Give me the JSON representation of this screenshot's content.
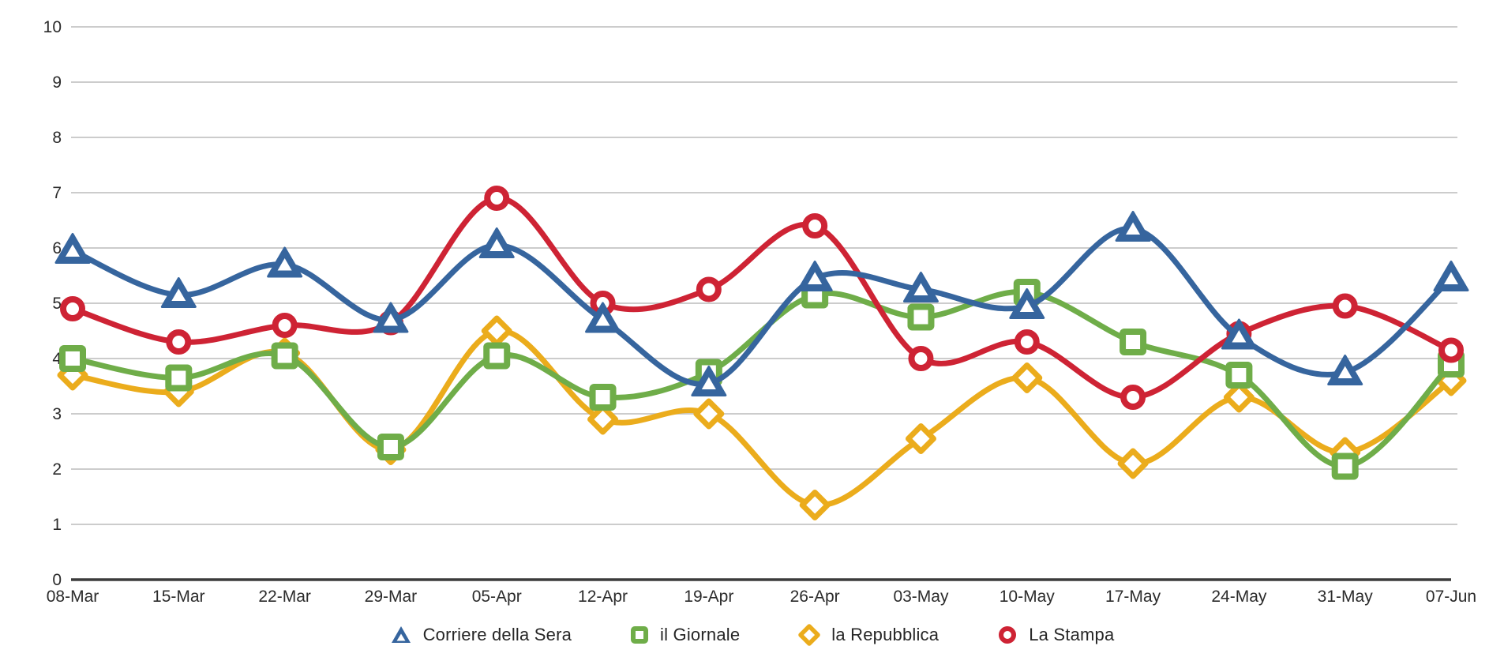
{
  "chart_data": {
    "type": "line",
    "title": "",
    "xlabel": "",
    "ylabel": "",
    "ylim": [
      0,
      10
    ],
    "y_ticks": [
      0,
      1,
      2,
      3,
      4,
      5,
      6,
      7,
      8,
      9,
      10
    ],
    "grid": "horizontal",
    "legend_position": "bottom",
    "categories": [
      "08-Mar",
      "15-Mar",
      "22-Mar",
      "29-Mar",
      "05-Apr",
      "12-Apr",
      "19-Apr",
      "26-Apr",
      "03-May",
      "10-May",
      "17-May",
      "24-May",
      "31-May",
      "07-Jun"
    ],
    "series": [
      {
        "name": "Corriere della Sera",
        "marker": "triangle",
        "color": "#36659E",
        "values": [
          5.95,
          5.15,
          5.7,
          4.7,
          6.05,
          4.7,
          3.55,
          5.45,
          5.25,
          4.95,
          6.35,
          4.4,
          3.75,
          5.45
        ]
      },
      {
        "name": "il Giornale",
        "marker": "square",
        "color": "#6FAD49",
        "values": [
          4.0,
          3.65,
          4.05,
          2.4,
          4.05,
          3.3,
          3.75,
          5.15,
          4.75,
          5.2,
          4.3,
          3.7,
          2.05,
          3.9
        ]
      },
      {
        "name": "la Repubblica",
        "marker": "diamond",
        "color": "#EBAC1C",
        "values": [
          3.7,
          3.4,
          4.1,
          2.35,
          4.5,
          2.9,
          3.0,
          1.35,
          2.55,
          3.65,
          2.1,
          3.3,
          2.3,
          3.6
        ]
      },
      {
        "name": "La Stampa",
        "marker": "circle",
        "color": "#CE2334",
        "values": [
          4.9,
          4.3,
          4.6,
          4.65,
          6.9,
          5.0,
          5.25,
          6.4,
          4.0,
          4.3,
          3.3,
          4.45,
          4.95,
          4.15
        ]
      }
    ],
    "colors": {
      "gridline": "#C5C5C5",
      "axis_line": "#3C3C3C",
      "tick_text": "#2B2B2B",
      "marker_fill": "#FFFFFF"
    }
  }
}
